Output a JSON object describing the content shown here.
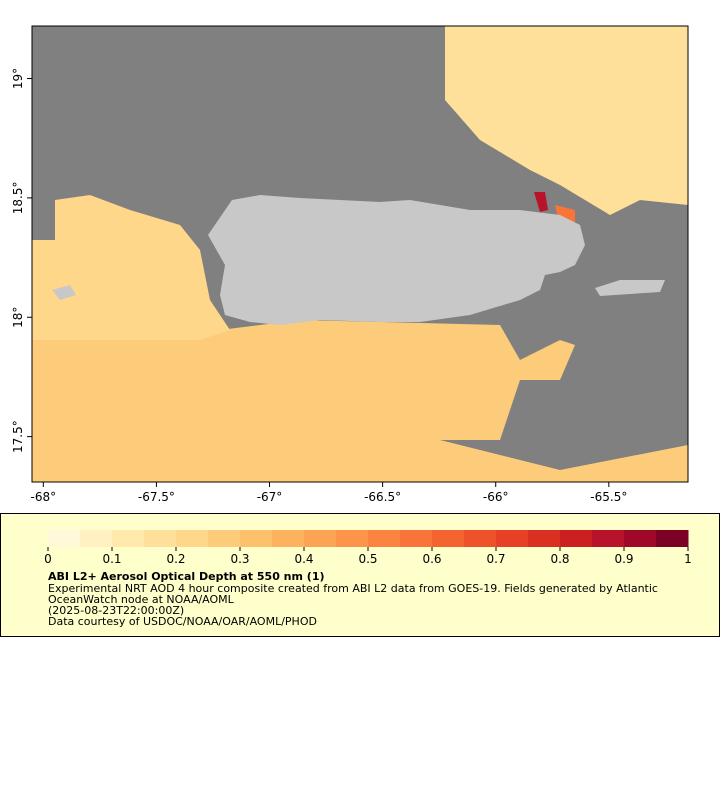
{
  "chart_data": {
    "type": "map",
    "xlim": [
      -68.05,
      -65.15
    ],
    "ylim": [
      17.31,
      19.22
    ],
    "xticks": [
      {
        "value": -68,
        "label": "-68°"
      },
      {
        "value": -67.5,
        "label": "-67.5°"
      },
      {
        "value": -67,
        "label": "-67°"
      },
      {
        "value": -66.5,
        "label": "-66.5°"
      },
      {
        "value": -66,
        "label": "-66°"
      },
      {
        "value": -65.5,
        "label": "-65.5°"
      }
    ],
    "yticks": [
      {
        "value": 17.5,
        "label": "17.5°"
      },
      {
        "value": 18,
        "label": "18°"
      },
      {
        "value": 18.5,
        "label": "18.5°"
      },
      {
        "value": 19,
        "label": "19°"
      }
    ],
    "field_values": [
      0.25,
      0.15,
      0.2,
      0.85,
      0.55
    ],
    "colorbar": {
      "lim": [
        0,
        1
      ],
      "ticks": [
        0,
        0.1,
        0.2,
        0.3,
        0.4,
        0.5,
        0.6,
        0.7,
        0.8,
        0.9,
        1
      ],
      "colors": [
        "#fff9d9",
        "#fff1c2",
        "#ffe9ab",
        "#ffe09a",
        "#fed78a",
        "#fdcc7a",
        "#fdc06b",
        "#fdb25e",
        "#fca453",
        "#fc9549",
        "#fb8540",
        "#f97438",
        "#f56331",
        "#ef522b",
        "#e64126",
        "#da3022",
        "#cb2020",
        "#b8132a",
        "#a0082a",
        "#7d0025"
      ]
    },
    "title": "ABI L2+ Aerosol Optical Depth at 550 nm (1)",
    "description": [
      "Experimental NRT AOD 4 hour composite created from ABI L2 data from GOES-19. Fields generated by Atlantic",
      "OceanWatch node at NOAA/AOML",
      "(2025-08-23T22:00:00Z)",
      "Data courtesy of USDOC/NOAA/OAR/AOML/PHOD"
    ]
  }
}
